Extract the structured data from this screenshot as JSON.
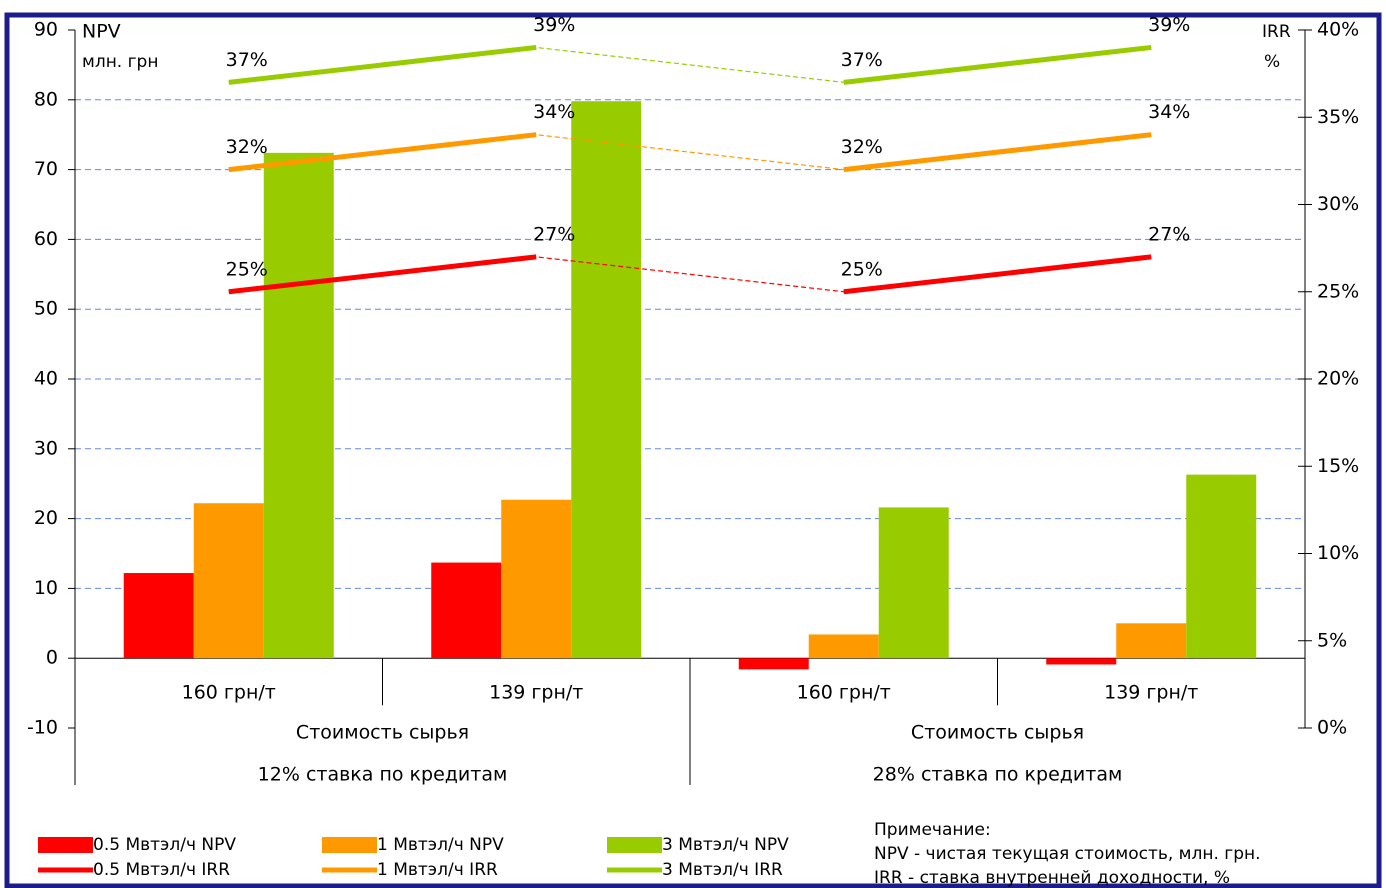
{
  "chart_data": {
    "type": "bar",
    "ylabel": "NPV",
    "yunit": "млн. грн",
    "y2label": "IRR",
    "y2unit": "%",
    "categories": [
      "160 грн/т",
      "139 грн/т",
      "160 грн/т",
      "139 грн/т"
    ],
    "groups": [
      {
        "name": "12% ставка по кредитам",
        "subtitle": "Стоимость сырья"
      },
      {
        "name": "28% ставка по кредитам",
        "subtitle": "Стоимость сырья"
      }
    ],
    "ylim": [
      -10,
      90
    ],
    "yticks": [
      -10,
      0,
      10,
      20,
      30,
      40,
      50,
      60,
      70,
      80,
      90
    ],
    "y2lim": [
      0,
      40
    ],
    "y2ticks": [
      {
        "value": 0,
        "label": "0%"
      },
      {
        "value": 5,
        "label": "5%"
      },
      {
        "value": 10,
        "label": "10%"
      },
      {
        "value": 15,
        "label": "15%"
      },
      {
        "value": 20,
        "label": "20%"
      },
      {
        "value": 25,
        "label": "25%"
      },
      {
        "value": 30,
        "label": "30%"
      },
      {
        "value": 35,
        "label": "35%"
      },
      {
        "value": 40,
        "label": "40%"
      }
    ],
    "grid": true,
    "series": [
      {
        "name": "0.5 Мвтэл/ч NPV",
        "type": "bar",
        "color": "#ff0000",
        "values": [
          12.2,
          13.7,
          -1.6,
          -0.9
        ]
      },
      {
        "name": "1 Мвтэл/ч NPV",
        "type": "bar",
        "color": "#ff9900",
        "values": [
          22.2,
          22.7,
          3.4,
          5.0
        ]
      },
      {
        "name": "3 Мвтэл/ч NPV",
        "type": "bar",
        "color": "#99cc00",
        "values": [
          72.4,
          79.8,
          21.6,
          26.3
        ]
      },
      {
        "name": "0.5 Мвтэл/ч IRR",
        "type": "line",
        "axis": "y2",
        "color": "#ff0000",
        "values": [
          25,
          27,
          25,
          27
        ],
        "value_labels": [
          "25%",
          "27%",
          "25%",
          "27%"
        ]
      },
      {
        "name": "1 Мвтэл/ч IRR",
        "type": "line",
        "axis": "y2",
        "color": "#ff9900",
        "values": [
          32,
          34,
          32,
          34
        ],
        "value_labels": [
          "32%",
          "34%",
          "32%",
          "34%"
        ]
      },
      {
        "name": "3 Мвтэл/ч IRR",
        "type": "line",
        "axis": "y2",
        "color": "#99cc00",
        "values": [
          37,
          39,
          37,
          39
        ],
        "value_labels": [
          "37%",
          "39%",
          "37%",
          "39%"
        ]
      }
    ],
    "notes": [
      "Примечание:",
      "NPV - чистая текущая стоимость, млн. грн.",
      "IRR - ставка внутренней доходности, %"
    ]
  }
}
